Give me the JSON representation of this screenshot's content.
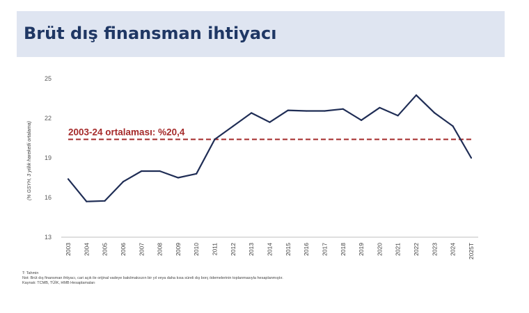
{
  "title": "Brüt dış finansman ihtiyacı",
  "chart_data": {
    "type": "line",
    "ylabel": "(% GSYH, 3 yıllık hareketli ortalama)",
    "ylim": [
      13,
      25
    ],
    "yticks": [
      13,
      16,
      19,
      22,
      25
    ],
    "grid": false,
    "legend": "none",
    "categories": [
      "2003",
      "2004",
      "2005",
      "2006",
      "2007",
      "2008",
      "2009",
      "2010",
      "2011",
      "2012",
      "2013",
      "2014",
      "2015",
      "2016",
      "2017",
      "2018",
      "2019",
      "2020",
      "2021",
      "2022",
      "2023",
      "2024",
      "2025T"
    ],
    "series": [
      {
        "values": [
          17.4,
          15.7,
          15.75,
          17.2,
          18.0,
          18.0,
          17.5,
          17.8,
          20.4,
          21.4,
          22.4,
          21.7,
          22.6,
          22.55,
          22.55,
          22.7,
          21.85,
          22.8,
          22.2,
          23.75,
          22.4,
          21.4,
          19.0
        ],
        "color": "#1f2d55"
      }
    ],
    "reference_line": {
      "value": 20.4,
      "label": "2003-24 ortalaması: %20,4",
      "color": "#a52a2a",
      "style": "dashed"
    }
  },
  "notes": {
    "line1": "T: Tahmin",
    "line2": "Not: Brüt dış finansman ihtiyacı, cari açık ile orijinal vadeye bakılmaksızın bir yıl veya daha kısa süreli dış borç ödemelerinin toplanmasıyla hesaplanmıştır.",
    "line3": "Kaynak: TCMB, TÜİK, HMB Hesaplamaları"
  }
}
